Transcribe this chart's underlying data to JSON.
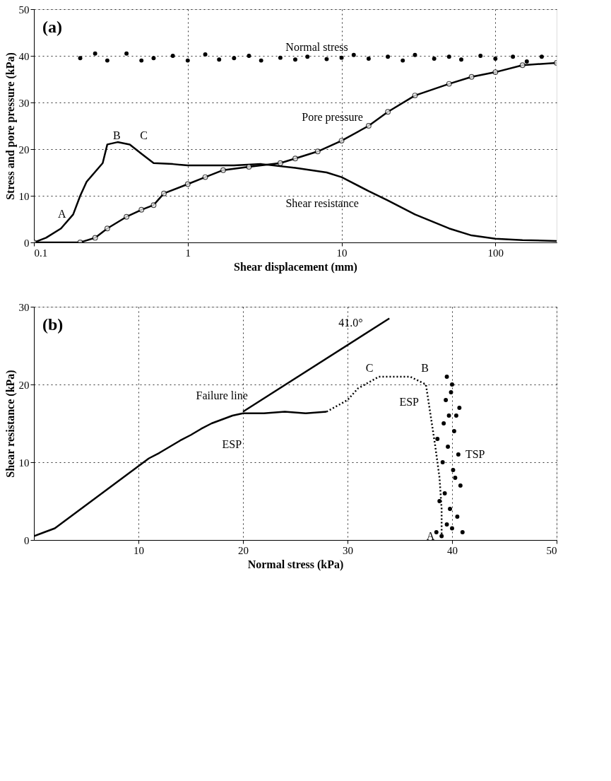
{
  "chart_data": [
    {
      "type": "line",
      "xlabel": "Shear displacement (mm)",
      "ylabel": "Stress and pore pressure (kPa)",
      "log": "x",
      "xlim": [
        0.1,
        250
      ],
      "xticks": [
        0.1,
        1,
        10,
        100
      ],
      "ylim": [
        0,
        50
      ],
      "yticks": [
        0,
        10,
        20,
        30,
        40,
        50
      ],
      "grid": true,
      "annotations": [
        "(a)",
        {
          "text": "Normal stress",
          "x": 12,
          "y": 40
        },
        {
          "text": "Pore pressure",
          "x": 15,
          "y": 25
        },
        {
          "text": "Shear resistance",
          "x": 15,
          "y": 11
        },
        {
          "text": "A",
          "x": 0.18,
          "y": 6
        },
        {
          "text": "B",
          "x": 0.3,
          "y": 21
        },
        {
          "text": "C",
          "x": 0.45,
          "y": 21
        }
      ],
      "series": [
        {
          "type": "scatter",
          "color": "#000000",
          "marker": "circle",
          "x": [
            0.2,
            0.25,
            0.3,
            0.4,
            0.5,
            0.6,
            0.8,
            1,
            1.3,
            1.6,
            2,
            2.5,
            3,
            4,
            5,
            6,
            8,
            10,
            12,
            15,
            20,
            25,
            30,
            40,
            50,
            60,
            80,
            100,
            130,
            160,
            200
          ],
          "values": [
            39.5,
            40.5,
            39,
            40.5,
            39,
            39.5,
            40,
            39,
            40.3,
            39.2,
            39.5,
            40,
            39,
            39.6,
            39.2,
            39.8,
            39.3,
            39.6,
            40.2,
            39.4,
            39.8,
            39,
            40.2,
            39.4,
            39.8,
            39.2,
            40,
            39.4,
            39.8,
            38.8,
            39.8
          ]
        },
        {
          "type": "line",
          "color": "#000000",
          "marker": "none",
          "x": [
            0.1,
            0.12,
            0.15,
            0.18,
            0.2,
            0.22,
            0.28,
            0.3,
            0.35,
            0.42,
            0.5,
            0.6,
            0.8,
            1,
            2,
            3,
            5,
            8,
            10,
            15,
            20,
            30,
            50,
            70,
            100,
            150,
            250
          ],
          "values": [
            0,
            1,
            3,
            6,
            10,
            13,
            17,
            21,
            21.5,
            21,
            19,
            17,
            16.8,
            16.5,
            16.5,
            16.8,
            16,
            15,
            14,
            11,
            9,
            6,
            3,
            1.5,
            0.8,
            0.5,
            0.3
          ]
        },
        {
          "type": "line",
          "color": "#000000",
          "marker": "circle",
          "x": [
            0.1,
            0.2,
            0.25,
            0.3,
            0.4,
            0.5,
            0.6,
            0.7,
            1,
            1.3,
            1.7,
            2.5,
            4,
            5,
            7,
            10,
            15,
            20,
            30,
            50,
            70,
            100,
            150,
            250
          ],
          "values": [
            0,
            0,
            1,
            3,
            5.5,
            7,
            8,
            10.5,
            12.5,
            14,
            15.5,
            16.2,
            17,
            18,
            19.5,
            21.8,
            25,
            28,
            31.5,
            34,
            35.5,
            36.5,
            38,
            38.5
          ]
        }
      ]
    },
    {
      "type": "line",
      "xlabel": "Normal stress (kPa)",
      "ylabel": "Shear resistance (kPa)",
      "xlim": [
        0,
        50
      ],
      "xticks": [
        10,
        20,
        30,
        40,
        50
      ],
      "ylim": [
        0,
        30
      ],
      "yticks": [
        0,
        10,
        20,
        30
      ],
      "grid": true,
      "annotations": [
        "(b)",
        {
          "text": "Failure line",
          "x": 21,
          "y": 17.5
        },
        {
          "text": "41.0°",
          "x": 32,
          "y": 26.8
        },
        {
          "text": "ESP",
          "x": 17,
          "y": 15
        },
        {
          "text": "ESP",
          "x": 37.5,
          "y": 20
        },
        {
          "text": "TSP",
          "x": 40.6,
          "y": 11
        },
        {
          "text": "A",
          "x": 39,
          "y": 0.5
        },
        {
          "text": "B",
          "x": 36.5,
          "y": 21
        },
        {
          "text": "C",
          "x": 33,
          "y": 21
        }
      ],
      "series": [
        {
          "type": "line",
          "color": "#000000",
          "marker": "none",
          "x": [
            0,
            1,
            2,
            3,
            4,
            5,
            6,
            7,
            8,
            9,
            10,
            11,
            12,
            13,
            14,
            15,
            16,
            17,
            18,
            19,
            20,
            22,
            24,
            26,
            28
          ],
          "values": [
            0.5,
            1,
            1.5,
            2.5,
            3.5,
            4.5,
            5.5,
            6.5,
            7.5,
            8.5,
            9.5,
            10.5,
            11.2,
            12,
            12.8,
            13.5,
            14.3,
            15,
            15.5,
            16,
            16.3,
            16.3,
            16.5,
            16.3,
            16.5
          ]
        },
        {
          "type": "line",
          "color": "#000000",
          "marker": "none",
          "line_style": "dotted",
          "x": [
            28,
            30,
            31,
            33,
            36,
            37.5,
            38.4,
            38.8,
            39,
            39
          ],
          "values": [
            16.5,
            18,
            19.5,
            21,
            21,
            20,
            12,
            8,
            4,
            0.5
          ]
        },
        {
          "type": "line",
          "color": "#000000",
          "marker": "none",
          "x": [
            20,
            34
          ],
          "values": [
            16.5,
            28.5
          ]
        },
        {
          "type": "scatter",
          "color": "#000000",
          "marker": "circle",
          "x": [
            38.5,
            39,
            39.5,
            40,
            40.5,
            41,
            38.8,
            39.3,
            39.8,
            40.3,
            40.8,
            39.1,
            39.6,
            40.1,
            40.6,
            38.6,
            39.2,
            39.7,
            40.2,
            40.7,
            39.4,
            40,
            40.4,
            39.9,
            39.5
          ],
          "values": [
            1,
            0.5,
            2,
            1.5,
            3,
            1,
            5,
            6,
            4,
            8,
            7,
            10,
            12,
            9,
            11,
            13,
            15,
            16,
            14,
            17,
            18,
            20,
            16,
            19,
            21
          ]
        }
      ]
    }
  ]
}
